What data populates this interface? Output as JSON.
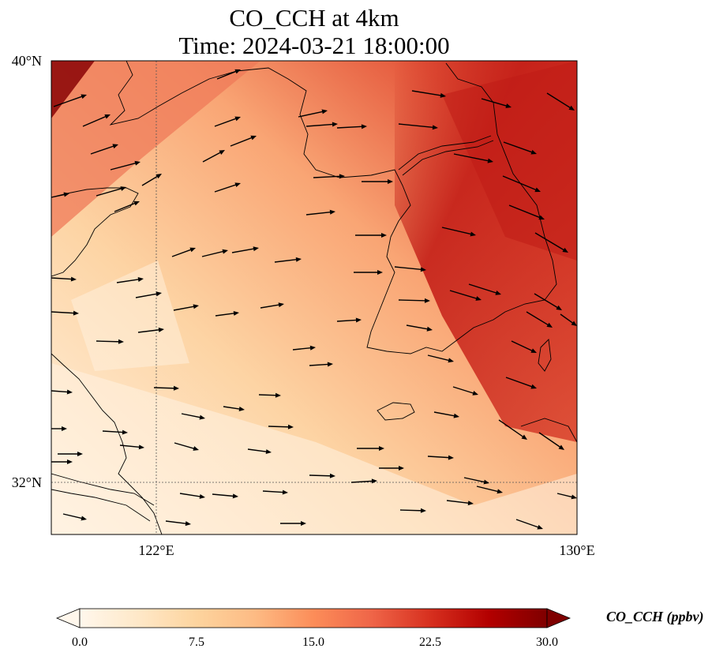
{
  "title": {
    "line1": "CO_CCH at 4km",
    "line2": "Time: 2024-03-21 18:00:00"
  },
  "map": {
    "projection": "PlateCarree",
    "lon_range": [
      119.6,
      130.0
    ],
    "lat_range": [
      31.0,
      40.0
    ],
    "gridlines": {
      "lon": [
        {
          "value": 122,
          "label": "122°E"
        },
        {
          "value": 130,
          "label": "130°E"
        }
      ],
      "lat": [
        {
          "value": 40,
          "label": "40°N"
        },
        {
          "value": 32,
          "label": "32°N"
        }
      ]
    },
    "field": "CO_CCH",
    "units": "ppbv",
    "colormap": "OrRd",
    "wind_vector_color": "#000000",
    "coastline_color": "#000000"
  },
  "colorbar": {
    "label": "CO_CCH (ppbv)",
    "min": 0.0,
    "max": 30.0,
    "extend": "both",
    "ticks": [
      "0.0",
      "7.5",
      "15.0",
      "22.5",
      "30.0"
    ],
    "colors": [
      "#fff7ec",
      "#fee8c8",
      "#fdd49e",
      "#fdbb84",
      "#fc8d59",
      "#ef6548",
      "#d7301f",
      "#b30000",
      "#7f0000"
    ]
  }
}
